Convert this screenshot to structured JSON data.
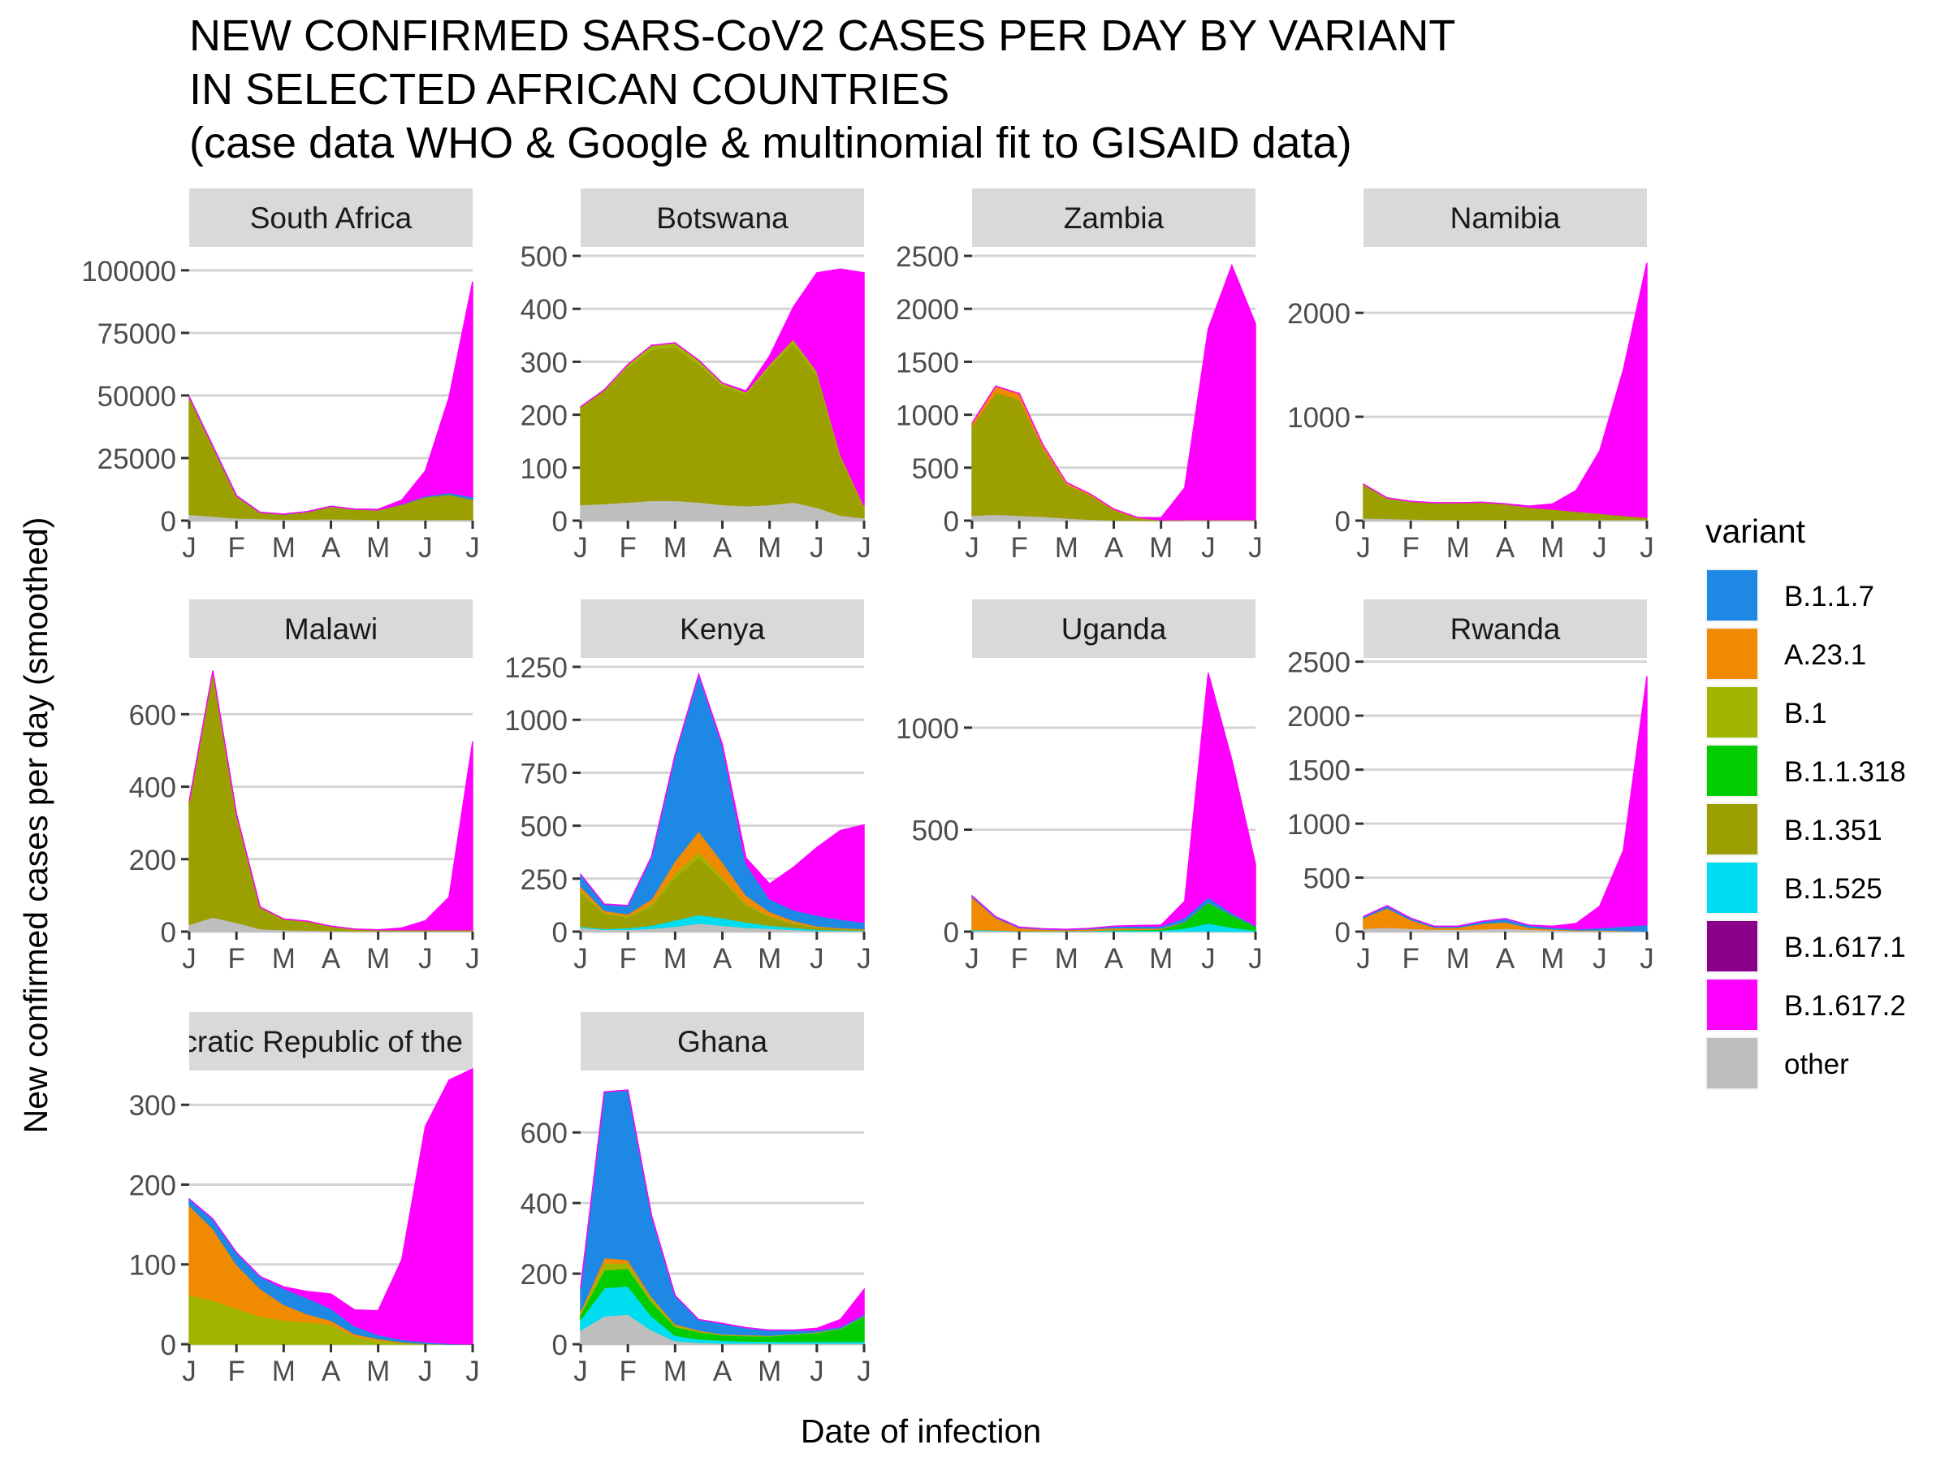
{
  "chart_data": {
    "type": "area",
    "title_lines": [
      "NEW CONFIRMED SARS-CoV2 CASES PER DAY BY VARIANT",
      "IN SELECTED AFRICAN COUNTRIES",
      "(case data WHO & Google & multinomial fit to GISAID data)"
    ],
    "xlabel": "Date of infection",
    "ylabel": "New confirmed cases per day (smoothed)",
    "x_ticks": [
      "J",
      "F",
      "M",
      "A",
      "M",
      "J",
      "J"
    ],
    "grid": true,
    "legend": {
      "title": "variant",
      "position": "right",
      "entries": [
        {
          "name": "B.1.1.7",
          "color": "#1E88E5"
        },
        {
          "name": "A.23.1",
          "color": "#F08A00"
        },
        {
          "name": "B.1",
          "color": "#A0B400"
        },
        {
          "name": "B.1.1.318",
          "color": "#00CC00"
        },
        {
          "name": "B.1.351",
          "color": "#9C9F00"
        },
        {
          "name": "B.1.525",
          "color": "#00DDF0"
        },
        {
          "name": "B.1.617.1",
          "color": "#8B008B"
        },
        {
          "name": "B.1.617.2",
          "color": "#FF00FF"
        },
        {
          "name": "other",
          "color": "#BEBEBE"
        }
      ]
    },
    "stack_order": [
      "other",
      "B.1.617.1",
      "B.1.525",
      "B.1.351",
      "B.1.1.318",
      "B.1",
      "A.23.1",
      "B.1.1.7",
      "B.1.617.2"
    ],
    "x": [
      "Jan 1",
      "Jan 16",
      "Feb 1",
      "Feb 15",
      "Mar 1",
      "Mar 16",
      "Apr 1",
      "Apr 16",
      "May 1",
      "May 16",
      "Jun 1",
      "Jun 16",
      "Jul 1"
    ],
    "panels": [
      {
        "name": "South Africa",
        "ylim": [
          0,
          110000
        ],
        "yticks": [
          0,
          25000,
          50000,
          75000,
          100000
        ],
        "series": {
          "other": [
            2500,
            1800,
            1000,
            800,
            600,
            600,
            700,
            600,
            500,
            500,
            500,
            500,
            500
          ],
          "B.1.351": [
            47000,
            28000,
            9000,
            2500,
            2000,
            3000,
            5000,
            4000,
            3800,
            6000,
            9000,
            10000,
            8000
          ],
          "B.1.1.7": [
            0,
            0,
            0,
            0,
            0,
            0,
            0,
            0,
            0,
            200,
            400,
            700,
            1000
          ],
          "B.1.617.2": [
            0,
            0,
            0,
            0,
            0,
            0,
            0,
            0,
            200,
            1500,
            10000,
            38000,
            86000
          ]
        }
      },
      {
        "name": "Botswana",
        "ylim": [
          0,
          520
        ],
        "yticks": [
          0,
          100,
          200,
          300,
          400,
          500
        ],
        "series": {
          "other": [
            30,
            32,
            35,
            38,
            38,
            35,
            30,
            28,
            30,
            35,
            25,
            10,
            5
          ],
          "B.1.351": [
            185,
            215,
            255,
            285,
            290,
            260,
            225,
            210,
            260,
            300,
            250,
            110,
            20
          ],
          "B.1": [
            0,
            0,
            5,
            8,
            8,
            8,
            5,
            5,
            6,
            8,
            8,
            5,
            3
          ],
          "B.1.617.2": [
            0,
            0,
            0,
            0,
            0,
            0,
            0,
            2,
            15,
            60,
            185,
            350,
            440
          ]
        }
      },
      {
        "name": "Zambia",
        "ylim": [
          0,
          2600
        ],
        "yticks": [
          0,
          500,
          1000,
          1500,
          2000,
          2500
        ],
        "series": {
          "other": [
            50,
            60,
            50,
            40,
            25,
            12,
            5,
            3,
            2,
            5,
            5,
            5,
            5
          ],
          "B.1.351": [
            850,
            1150,
            1100,
            650,
            320,
            230,
            100,
            25,
            5,
            5,
            5,
            5,
            5
          ],
          "A.23.1": [
            20,
            60,
            50,
            25,
            15,
            10,
            5,
            2,
            0,
            0,
            0,
            0,
            0
          ],
          "B.1.617.2": [
            0,
            0,
            0,
            0,
            0,
            0,
            0,
            0,
            20,
            300,
            1800,
            2400,
            1850
          ]
        }
      },
      {
        "name": "Namibia",
        "ylim": [
          0,
          2650
        ],
        "yticks": [
          0,
          1000,
          2000
        ],
        "series": {
          "other": [
            25,
            20,
            15,
            12,
            12,
            12,
            12,
            10,
            10,
            10,
            10,
            10,
            10
          ],
          "B.1.351": [
            325,
            200,
            170,
            160,
            160,
            165,
            150,
            120,
            100,
            80,
            60,
            40,
            20
          ],
          "B.1.617.2": [
            0,
            0,
            0,
            0,
            0,
            0,
            0,
            10,
            50,
            200,
            600,
            1400,
            2450
          ]
        }
      },
      {
        "name": "Malawi",
        "ylim": [
          0,
          760
        ],
        "yticks": [
          0,
          200,
          400,
          600
        ],
        "series": {
          "other": [
            20,
            40,
            25,
            8,
            5,
            4,
            3,
            2,
            2,
            2,
            2,
            2,
            2
          ],
          "B.1.351": [
            340,
            680,
            300,
            60,
            30,
            25,
            12,
            5,
            3,
            3,
            3,
            3,
            3
          ],
          "B.1.617.2": [
            0,
            0,
            0,
            0,
            0,
            0,
            0,
            0,
            0,
            5,
            25,
            90,
            520
          ]
        }
      },
      {
        "name": "Kenya",
        "ylim": [
          0,
          1300
        ],
        "yticks": [
          0,
          250,
          500,
          750,
          1000,
          1250
        ],
        "series": {
          "other": [
            20,
            10,
            10,
            15,
            25,
            40,
            30,
            20,
            15,
            10,
            5,
            5,
            5
          ],
          "B.1.525": [
            5,
            5,
            8,
            15,
            30,
            40,
            35,
            25,
            15,
            10,
            5,
            3,
            2
          ],
          "B.1.351": [
            160,
            70,
            50,
            90,
            200,
            270,
            180,
            80,
            40,
            20,
            10,
            5,
            3
          ],
          "B.1": [
            10,
            5,
            5,
            10,
            20,
            25,
            15,
            8,
            5,
            3,
            2,
            2,
            2
          ],
          "A.23.1": [
            20,
            10,
            10,
            25,
            60,
            100,
            70,
            40,
            20,
            10,
            5,
            3,
            2
          ],
          "B.1.1.7": [
            55,
            30,
            40,
            200,
            500,
            740,
            550,
            150,
            60,
            50,
            50,
            40,
            30
          ],
          "B.1.617.2": [
            0,
            0,
            0,
            0,
            0,
            0,
            5,
            25,
            70,
            200,
            320,
            420,
            460
          ]
        }
      },
      {
        "name": "Uganda",
        "ylim": [
          0,
          1350
        ],
        "yticks": [
          0,
          500,
          1000
        ],
        "series": {
          "other": [
            5,
            5,
            2,
            2,
            2,
            2,
            2,
            2,
            2,
            2,
            2,
            1,
            1
          ],
          "A.23.1": [
            160,
            60,
            15,
            8,
            5,
            8,
            10,
            8,
            5,
            2,
            2,
            1,
            0
          ],
          "B.1.1.7": [
            5,
            5,
            3,
            2,
            2,
            3,
            8,
            10,
            10,
            20,
            25,
            10,
            5
          ],
          "B.1.525": [
            5,
            3,
            2,
            2,
            2,
            3,
            5,
            5,
            5,
            15,
            40,
            20,
            5
          ],
          "B.1.1.318": [
            0,
            0,
            0,
            0,
            0,
            0,
            2,
            3,
            5,
            30,
            100,
            60,
            20
          ],
          "B.1.617.2": [
            0,
            0,
            0,
            0,
            0,
            0,
            0,
            2,
            5,
            80,
            1100,
            750,
            300
          ]
        }
      },
      {
        "name": "Rwanda",
        "ylim": [
          0,
          2550
        ],
        "yticks": [
          0,
          500,
          1000,
          1500,
          2000,
          2500
        ],
        "series": {
          "other": [
            30,
            40,
            30,
            20,
            20,
            25,
            30,
            20,
            15,
            10,
            10,
            5,
            5
          ],
          "B.1.1.7": [
            10,
            20,
            15,
            10,
            10,
            20,
            30,
            20,
            15,
            10,
            20,
            40,
            60
          ],
          "A.23.1": [
            100,
            180,
            80,
            20,
            20,
            50,
            60,
            20,
            10,
            5,
            5,
            5,
            0
          ],
          "B.1.617.2": [
            0,
            0,
            0,
            0,
            0,
            0,
            0,
            0,
            10,
            50,
            200,
            700,
            2300
          ]
        }
      },
      {
        "name": "Democratic Republic of the Congo",
        "ylim": [
          0,
          345
        ],
        "yticks": [
          0,
          100,
          200,
          300
        ],
        "series": {
          "B.1": [
            62,
            55,
            45,
            35,
            30,
            28,
            25,
            10,
            5,
            2,
            1,
            0,
            0
          ],
          "A.23.1": [
            112,
            90,
            55,
            35,
            20,
            10,
            5,
            3,
            2,
            1,
            0,
            0,
            0
          ],
          "B.1.1.7": [
            8,
            12,
            15,
            15,
            20,
            20,
            15,
            10,
            5,
            3,
            2,
            1,
            0
          ],
          "B.1.617.2": [
            0,
            0,
            0,
            0,
            2,
            8,
            18,
            20,
            30,
            100,
            270,
            330,
            345
          ]
        }
      },
      {
        "name": "Ghana",
        "ylim": [
          0,
          780
        ],
        "yticks": [
          0,
          200,
          400,
          600
        ],
        "series": {
          "other": [
            40,
            80,
            85,
            40,
            10,
            5,
            3,
            3,
            3,
            3,
            3,
            3,
            3
          ],
          "B.1.525": [
            30,
            80,
            80,
            40,
            15,
            10,
            8,
            6,
            5,
            5,
            5,
            5,
            5
          ],
          "B.1.1.318": [
            15,
            50,
            50,
            40,
            25,
            20,
            15,
            15,
            15,
            20,
            25,
            35,
            70
          ],
          "B.1": [
            5,
            20,
            15,
            10,
            5,
            3,
            2,
            2,
            2,
            2,
            2,
            2,
            2
          ],
          "A.23.1": [
            5,
            15,
            10,
            5,
            3,
            2,
            1,
            1,
            0,
            0,
            0,
            0,
            0
          ],
          "B.1.1.7": [
            65,
            470,
            480,
            230,
            80,
            30,
            30,
            20,
            15,
            10,
            5,
            5,
            5
          ],
          "B.1.617.2": [
            0,
            0,
            0,
            0,
            0,
            0,
            0,
            0,
            0,
            0,
            5,
            20,
            70
          ]
        }
      }
    ]
  }
}
